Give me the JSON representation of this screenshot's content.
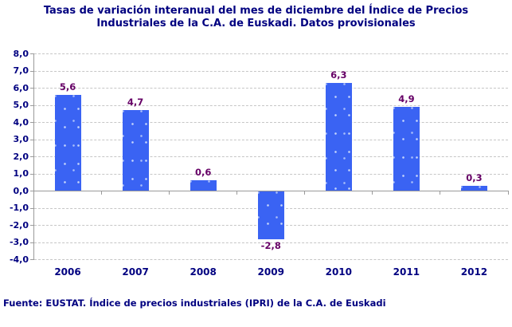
{
  "title": {
    "line1": "Tasas de variación interanual del mes de diciembre del Índice de Precios",
    "line2": "Industriales de la C.A. de Euskadi. Datos provisionales"
  },
  "footer": {
    "text": "Fuente: EUSTAT. Índice de precios industriales (IPRI) de la C.A. de Euskadi"
  },
  "chart_data": {
    "type": "bar",
    "title": "Tasas de variación interanual del mes de diciembre del Índice de Precios Industriales de la C.A. de Euskadi. Datos provisionales",
    "categories": [
      "2006",
      "2007",
      "2008",
      "2009",
      "2010",
      "2011",
      "2012"
    ],
    "values": [
      5.6,
      4.7,
      0.6,
      -2.8,
      6.3,
      4.9,
      0.3
    ],
    "data_labels": [
      "5,6",
      "4,7",
      "0,6",
      "-2,8",
      "6,3",
      "4,9",
      "0,3"
    ],
    "xlabel": "",
    "ylabel": "",
    "ylim": [
      -4.0,
      8.0
    ],
    "ytick_step": 1.0,
    "ytick_labels": [
      "8,0",
      "7,0",
      "6,0",
      "5,0",
      "4,0",
      "3,0",
      "2,0",
      "1,0",
      "0,0",
      "-1,0",
      "-2,0",
      "-3,0",
      "-4,0"
    ],
    "grid": "horizontal-dashed",
    "legend": "none",
    "colors": {
      "bar_fill": "#3A63F3",
      "bar_speckle": "#CDDCFC",
      "data_label": "#660066",
      "axis_text": "#000080",
      "title_text": "#000080",
      "gridline": "#C6C6C6",
      "axis_line": "#9A9A9A",
      "background": "#FFFFFF"
    }
  }
}
